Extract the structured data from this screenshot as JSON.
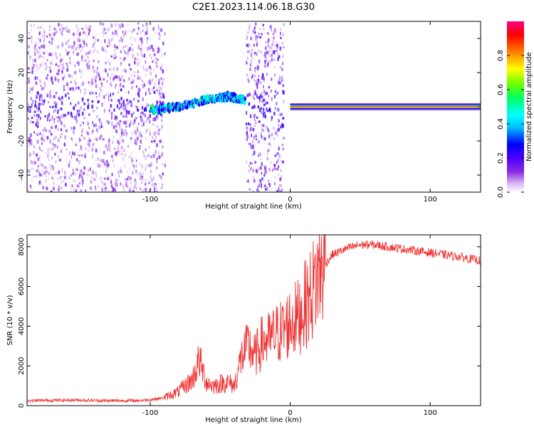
{
  "title": "C2E1.2023.114.06.18.G30",
  "chart_data": [
    {
      "type": "heatmap",
      "xlabel": "Height of straight line (km)",
      "ylabel": "Frequency (Hz)",
      "xlim": [
        -188,
        136
      ],
      "ylim": [
        -50,
        50
      ],
      "xticks": [
        -100,
        0,
        100
      ],
      "yticks": [
        -40,
        -20,
        0,
        20,
        40
      ],
      "grid": false,
      "colorbar": {
        "label": "Normalized spectral amplitude",
        "range": [
          0,
          1
        ],
        "ticks": [
          0.0,
          0.2,
          0.4,
          0.6,
          0.8
        ],
        "tick_labels": [
          "0.0",
          "0.2",
          "0.4",
          "0.6",
          "0.8"
        ],
        "colormap": [
          "#ffffff",
          "#d9b8f5",
          "#8a2be2",
          "#4b00ff",
          "#0000ff",
          "#00bfff",
          "#00ffff",
          "#00ff66",
          "#66ff00",
          "#ffff00",
          "#ff8000",
          "#ff0000",
          "#ff0080"
        ]
      },
      "features": [
        {
          "name": "broadband scatter",
          "x_range": [
            -188,
            -90
          ],
          "freq_range": [
            -50,
            50
          ],
          "amplitude": 0.15
        },
        {
          "name": "doppler trace",
          "x": [
            -100,
            -80,
            -60,
            -45,
            -32
          ],
          "freq": [
            -2,
            0,
            4,
            6,
            4
          ],
          "amplitude": 0.45
        },
        {
          "name": "broadband scatter",
          "x_range": [
            -32,
            -5
          ],
          "freq_range": [
            -50,
            50
          ],
          "amplitude": 0.2
        },
        {
          "name": "direct signal",
          "x_range": [
            0,
            136
          ],
          "freq": 0,
          "amplitude": 0.95
        }
      ]
    },
    {
      "type": "line",
      "xlabel": "Height of straight line (km)",
      "ylabel": "SNR (10 * v/v)",
      "xlim": [
        -188,
        136
      ],
      "ylim": [
        0,
        8600
      ],
      "xticks": [
        -100,
        0,
        100
      ],
      "yticks": [
        0,
        2000,
        4000,
        6000,
        8000
      ],
      "grid": false,
      "color": "#ee3333",
      "series": [
        {
          "x": [
            -188,
            -170,
            -150,
            -130,
            -110,
            -100,
            -90,
            -80,
            -70,
            -65,
            -60,
            -55,
            -50,
            -45,
            -40,
            -35,
            -30,
            -25,
            -20,
            -15,
            -10,
            -5,
            0,
            5,
            10,
            15,
            20,
            25,
            30,
            40,
            50,
            60,
            70,
            80,
            90,
            100,
            110,
            120,
            136
          ],
          "y": [
            250,
            270,
            280,
            250,
            250,
            300,
            400,
            700,
            1300,
            2300,
            1200,
            1000,
            1100,
            1200,
            1000,
            2400,
            3000,
            2500,
            3200,
            3300,
            3600,
            3800,
            4200,
            4400,
            5000,
            5600,
            6600,
            7100,
            7600,
            7900,
            8100,
            8100,
            8000,
            7900,
            7800,
            7700,
            7600,
            7500,
            7300
          ]
        }
      ]
    }
  ]
}
